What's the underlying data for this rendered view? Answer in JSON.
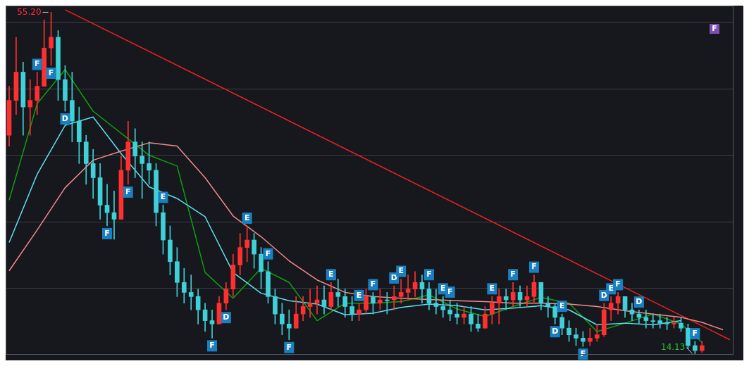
{
  "chart_data": {
    "type": "candlestick",
    "ylim": [
      14,
      56
    ],
    "yticks": [
      {
        "value": 22,
        "label": null
      },
      {
        "value": 30,
        "label": null
      },
      {
        "value": 38,
        "label": null
      },
      {
        "value": 46,
        "label": null
      },
      {
        "value": 54,
        "label": null
      }
    ],
    "grid": "y",
    "legend": false,
    "categories": [
      null,
      null,
      null,
      null,
      null,
      null,
      null,
      null,
      null,
      null,
      null,
      null,
      null,
      null,
      null,
      null,
      null,
      null,
      null,
      null,
      null,
      null,
      null,
      null,
      null,
      null,
      null,
      null,
      null,
      null,
      null,
      null,
      null,
      null,
      null,
      null,
      null,
      null,
      null,
      null,
      null,
      null,
      null,
      null,
      null,
      null,
      null,
      null,
      null,
      null,
      null,
      null,
      null,
      null,
      null,
      null,
      null,
      null,
      null,
      null,
      null,
      null,
      null,
      null,
      null,
      null,
      null,
      null,
      null,
      null,
      null,
      null,
      null,
      null,
      null,
      null,
      null,
      null,
      null,
      null,
      null,
      null,
      null,
      null,
      null,
      null,
      null,
      null,
      null,
      null,
      null,
      null,
      null,
      null,
      null,
      null,
      null,
      null,
      null,
      null,
      null,
      null,
      null,
      null
    ],
    "ohlc": [
      [
        40.4,
        46.3,
        39.1,
        44.6
      ],
      [
        44.6,
        52.2,
        42.9,
        48.0
      ],
      [
        48.0,
        49.2,
        40.4,
        43.8
      ],
      [
        43.8,
        47.1,
        40.4,
        44.6
      ],
      [
        44.6,
        48.0,
        42.9,
        46.3
      ],
      [
        46.3,
        54.3,
        46.3,
        50.9
      ],
      [
        50.9,
        55.2,
        48.8,
        52.2
      ],
      [
        52.2,
        53.0,
        44.6,
        47.1
      ],
      [
        47.1,
        48.8,
        43.3,
        44.6
      ],
      [
        44.6,
        48.0,
        39.6,
        42.1
      ],
      [
        42.1,
        43.8,
        37.0,
        39.6
      ],
      [
        39.6,
        40.4,
        34.5,
        37.0
      ],
      [
        37.0,
        38.7,
        32.8,
        35.3
      ],
      [
        35.3,
        37.0,
        30.3,
        32.0
      ],
      [
        32.0,
        34.5,
        29.5,
        31.1
      ],
      [
        31.1,
        33.7,
        27.9,
        30.3
      ],
      [
        30.3,
        37.9,
        30.3,
        36.2
      ],
      [
        36.2,
        42.1,
        34.5,
        39.6
      ],
      [
        39.6,
        41.2,
        35.3,
        37.9
      ],
      [
        37.9,
        39.6,
        32.8,
        37.0
      ],
      [
        37.0,
        39.6,
        34.5,
        36.2
      ],
      [
        36.2,
        37.0,
        29.5,
        31.1
      ],
      [
        31.1,
        32.0,
        26.1,
        27.8
      ],
      [
        27.8,
        29.5,
        23.6,
        25.2
      ],
      [
        25.2,
        26.9,
        21.0,
        22.7
      ],
      [
        22.7,
        24.4,
        20.2,
        21.5
      ],
      [
        21.5,
        23.6,
        19.4,
        21.0
      ],
      [
        21.0,
        21.9,
        17.7,
        19.4
      ],
      [
        19.4,
        20.2,
        16.8,
        18.1
      ],
      [
        18.1,
        19.4,
        16.0,
        17.7
      ],
      [
        17.7,
        21.0,
        17.7,
        20.2
      ],
      [
        20.2,
        22.7,
        19.4,
        21.9
      ],
      [
        21.9,
        26.1,
        21.0,
        24.8
      ],
      [
        24.8,
        28.6,
        23.6,
        26.9
      ],
      [
        26.9,
        29.5,
        25.2,
        27.8
      ],
      [
        27.8,
        28.6,
        24.4,
        26.1
      ],
      [
        26.1,
        26.9,
        21.9,
        24.0
      ],
      [
        24.0,
        25.2,
        20.2,
        21.0
      ],
      [
        21.0,
        21.9,
        17.7,
        18.9
      ],
      [
        18.9,
        20.2,
        16.4,
        17.7
      ],
      [
        17.7,
        19.4,
        15.8,
        17.2
      ],
      [
        17.2,
        21.0,
        17.2,
        18.9
      ],
      [
        18.9,
        21.0,
        18.1,
        19.8
      ],
      [
        19.8,
        21.9,
        18.5,
        20.2
      ],
      [
        20.2,
        22.3,
        18.9,
        20.6
      ],
      [
        20.6,
        22.3,
        18.9,
        19.8
      ],
      [
        19.8,
        22.7,
        19.4,
        21.5
      ],
      [
        21.5,
        23.1,
        19.8,
        21.0
      ],
      [
        21.0,
        21.9,
        18.5,
        19.8
      ],
      [
        19.8,
        21.0,
        18.1,
        18.9
      ],
      [
        18.9,
        20.2,
        18.1,
        19.4
      ],
      [
        19.4,
        21.9,
        18.9,
        21.0
      ],
      [
        21.0,
        21.5,
        18.9,
        20.2
      ],
      [
        20.2,
        21.9,
        19.4,
        20.6
      ],
      [
        20.6,
        21.5,
        18.9,
        20.5
      ],
      [
        20.6,
        22.3,
        19.4,
        21.0
      ],
      [
        21.0,
        23.1,
        20.2,
        21.5
      ],
      [
        21.5,
        23.6,
        20.6,
        21.9
      ],
      [
        21.9,
        24.0,
        21.0,
        22.7
      ],
      [
        22.7,
        23.6,
        20.2,
        21.9
      ],
      [
        21.9,
        22.7,
        19.4,
        20.2
      ],
      [
        20.2,
        21.9,
        18.9,
        19.8
      ],
      [
        19.8,
        21.0,
        18.5,
        19.4
      ],
      [
        19.4,
        20.6,
        18.1,
        18.9
      ],
      [
        18.9,
        20.2,
        17.7,
        18.5
      ],
      [
        18.5,
        19.8,
        17.7,
        18.9
      ],
      [
        18.9,
        19.8,
        16.8,
        17.7
      ],
      [
        17.7,
        18.9,
        16.8,
        17.2
      ],
      [
        17.2,
        19.8,
        17.2,
        18.9
      ],
      [
        18.9,
        21.0,
        17.7,
        20.2
      ],
      [
        20.2,
        21.9,
        17.7,
        21.0
      ],
      [
        21.0,
        21.9,
        19.4,
        20.6
      ],
      [
        20.6,
        22.7,
        19.8,
        21.5
      ],
      [
        21.5,
        22.3,
        19.8,
        20.6
      ],
      [
        20.6,
        22.3,
        19.8,
        21.0
      ],
      [
        21.0,
        23.6,
        20.2,
        22.7
      ],
      [
        22.7,
        22.7,
        19.4,
        20.2
      ],
      [
        20.2,
        21.0,
        18.5,
        19.8
      ],
      [
        19.8,
        20.2,
        17.7,
        18.5
      ],
      [
        18.5,
        18.9,
        16.4,
        17.2
      ],
      [
        17.2,
        18.1,
        15.6,
        16.4
      ],
      [
        16.4,
        17.2,
        15.1,
        16.0
      ],
      [
        16.0,
        16.8,
        15.0,
        15.6
      ],
      [
        15.6,
        17.2,
        15.1,
        16.0
      ],
      [
        16.0,
        17.7,
        15.6,
        16.4
      ],
      [
        16.4,
        20.2,
        16.2,
        19.4
      ],
      [
        19.4,
        21.0,
        18.1,
        20.2
      ],
      [
        20.2,
        21.5,
        18.9,
        21.0
      ],
      [
        21.0,
        21.0,
        18.5,
        19.4
      ],
      [
        19.4,
        20.2,
        18.1,
        18.9
      ],
      [
        18.9,
        19.4,
        17.7,
        18.5
      ],
      [
        18.5,
        19.4,
        17.2,
        18.1
      ],
      [
        18.1,
        18.9,
        17.2,
        18.0
      ],
      [
        18.1,
        18.9,
        17.2,
        17.8
      ],
      [
        17.8,
        18.5,
        17.0,
        17.7
      ],
      [
        17.7,
        18.5,
        17.2,
        17.8
      ],
      [
        17.8,
        18.5,
        16.8,
        17.2
      ],
      [
        17.2,
        17.7,
        14.7,
        15.1
      ],
      [
        15.1,
        15.6,
        14.13,
        14.5
      ],
      [
        14.5,
        15.6,
        14.3,
        15.1
      ],
      null,
      null,
      null,
      null
    ],
    "colors": [
      "#ff3030",
      "#ff3030",
      "#40d0d8",
      "#ff3030",
      "#ff3030",
      "#ff3030",
      "#ff3030",
      "#40d0d8",
      "#40d0d8",
      "#40d0d8",
      "#40d0d8",
      "#40d0d8",
      "#40d0d8",
      "#40d0d8",
      "#40d0d8",
      "#40d0d8",
      "#ff3030",
      "#ff3030",
      "#40d0d8",
      "#40d0d8",
      "#40d0d8",
      "#40d0d8",
      "#40d0d8",
      "#40d0d8",
      "#40d0d8",
      "#40d0d8",
      "#40d0d8",
      "#40d0d8",
      "#40d0d8",
      "#40d0d8",
      "#ff3030",
      "#ff3030",
      "#ff3030",
      "#ff3030",
      "#ff3030",
      "#40d0d8",
      "#40d0d8",
      "#40d0d8",
      "#40d0d8",
      "#40d0d8",
      "#40d0d8",
      "#ff3030",
      "#ff3030",
      "#ff3030",
      "#ff3030",
      "#40d0d8",
      "#ff3030",
      "#40d0d8",
      "#40d0d8",
      "#40d0d8",
      "#ff3030",
      "#ff3030",
      "#40d0d8",
      "#ff3030",
      "#40d0d8",
      "#ff3030",
      "#ff3030",
      "#ff3030",
      "#ff3030",
      "#40d0d8",
      "#40d0d8",
      "#40d0d8",
      "#40d0d8",
      "#40d0d8",
      "#40d0d8",
      "#ff3030",
      "#40d0d8",
      "#40d0d8",
      "#ff3030",
      "#ff3030",
      "#ff3030",
      "#40d0d8",
      "#ff3030",
      "#40d0d8",
      "#ff3030",
      "#ff3030",
      "#40d0d8",
      "#40d0d8",
      "#40d0d8",
      "#40d0d8",
      "#40d0d8",
      "#40d0d8",
      "#40d0d8",
      "#ff3030",
      "#ff3030",
      "#ff3030",
      "#ff3030",
      "#ff3030",
      "#40d0d8",
      "#40d0d8",
      "#40d0d8",
      "#40d0d8",
      "#40d0d8",
      "#40d0d8",
      "#40d0d8",
      "#ff3030",
      "#40d0d8",
      "#40d0d8",
      "#40d0d8",
      "#ff3030",
      null,
      null,
      null,
      null
    ],
    "series": [
      {
        "type": "line",
        "color": "#f08c8c",
        "values": [
          24.1,
          null,
          null,
          null,
          29.0,
          null,
          null,
          null,
          34.1,
          null,
          null,
          null,
          37.4,
          null,
          null,
          null,
          38.5,
          null,
          null,
          null,
          39.5,
          null,
          null,
          null,
          39.1,
          null,
          null,
          null,
          35.3,
          null,
          null,
          null,
          30.7,
          null,
          null,
          null,
          28.2,
          null,
          null,
          null,
          25.3,
          null,
          null,
          null,
          23.0,
          null,
          null,
          null,
          21.5,
          null,
          null,
          null,
          21.0,
          null,
          null,
          null,
          20.8,
          null,
          null,
          null,
          null,
          null,
          null,
          null,
          20.5,
          null,
          null,
          null,
          20.4,
          null,
          null,
          null,
          20.2,
          null,
          null,
          null,
          20.2,
          null,
          null,
          null,
          20.1,
          null,
          null,
          null,
          19.8,
          null,
          null,
          null,
          19.3,
          null,
          null,
          null,
          18.9,
          null,
          null,
          null,
          18.5,
          null,
          null,
          17.9,
          null,
          null,
          17.0,
          null
        ]
      },
      {
        "type": "line",
        "color": "#5ee0f0",
        "values": [
          27.5,
          null,
          null,
          null,
          35.7,
          null,
          null,
          null,
          41.6,
          null,
          null,
          null,
          42.6,
          null,
          null,
          null,
          38.2,
          null,
          null,
          null,
          34.2,
          null,
          null,
          null,
          32.8,
          null,
          null,
          null,
          30.6,
          null,
          null,
          null,
          23.9,
          null,
          null,
          null,
          21.4,
          null,
          null,
          null,
          20.5,
          null,
          null,
          null,
          20.1,
          null,
          null,
          null,
          18.8,
          null,
          null,
          null,
          19.0,
          null,
          null,
          null,
          19.7,
          null,
          null,
          null,
          20.1,
          null,
          null,
          null,
          19.9,
          null,
          null,
          null,
          19.4,
          null,
          null,
          null,
          19.6,
          null,
          null,
          null,
          19.9,
          null,
          null,
          null,
          19.4,
          null,
          null,
          null,
          17.6,
          null,
          null,
          null,
          17.8,
          null,
          null,
          null,
          17.6,
          null,
          null,
          null,
          18.1,
          null,
          null,
          null,
          null,
          null,
          null,
          null
        ]
      },
      {
        "type": "line",
        "color": "#10a010",
        "values": [
          32.6,
          null,
          null,
          null,
          44.2,
          null,
          null,
          null,
          48.3,
          null,
          null,
          null,
          43.3,
          null,
          null,
          null,
          null,
          null,
          null,
          null,
          38.0,
          null,
          null,
          null,
          36.7,
          null,
          null,
          null,
          23.9,
          null,
          null,
          null,
          20.8,
          null,
          null,
          null,
          24.4,
          null,
          null,
          null,
          22.7,
          null,
          null,
          null,
          18.1,
          null,
          null,
          null,
          20.2,
          null,
          null,
          null,
          20.2,
          null,
          null,
          null,
          20.4,
          null,
          null,
          null,
          21.2,
          null,
          null,
          null,
          19.5,
          null,
          null,
          null,
          18.6,
          null,
          null,
          null,
          19.8,
          null,
          null,
          null,
          20.9,
          null,
          null,
          null,
          20.2,
          null,
          null,
          null,
          16.8,
          null,
          null,
          null,
          17.8,
          null,
          null,
          null,
          18.9,
          null,
          null,
          null,
          17.7,
          null,
          null,
          15.5,
          null,
          null,
          null,
          null
        ]
      },
      {
        "type": "line",
        "color": "#f02020",
        "values": [
          null,
          null,
          null,
          null,
          null,
          null,
          null,
          null,
          55.5,
          null,
          null,
          null,
          null,
          null,
          null,
          null,
          null,
          null,
          null,
          null,
          null,
          null,
          null,
          null,
          null,
          null,
          null,
          null,
          null,
          null,
          null,
          null,
          null,
          null,
          null,
          null,
          null,
          null,
          null,
          null,
          null,
          null,
          null,
          null,
          null,
          null,
          null,
          null,
          null,
          null,
          null,
          null,
          null,
          null,
          null,
          null,
          null,
          null,
          null,
          null,
          null,
          null,
          null,
          null,
          null,
          null,
          null,
          null,
          null,
          null,
          null,
          null,
          null,
          null,
          null,
          null,
          null,
          null,
          null,
          null,
          null,
          null,
          null,
          null,
          null,
          null,
          null,
          null,
          null,
          null,
          null,
          null,
          null,
          null,
          null,
          null,
          null,
          null,
          null,
          null,
          null,
          null,
          null,
          15.8
        ]
      }
    ],
    "annotations": [
      "55.20",
      {
        "text": "F",
        "y": 48.0
      },
      {
        "text": "F",
        "y": 48.8
      },
      {
        "text": "D",
        "y": 43.3
      },
      {
        "text": "F",
        "y": 29.5
      },
      {
        "text": "F",
        "y": 34.5
      },
      {
        "text": "E",
        "y": 32.0
      },
      {
        "text": "F",
        "y": 16.0
      },
      {
        "text": "D",
        "y": 19.4
      },
      {
        "text": "E",
        "y": 29.5
      },
      {
        "text": "F",
        "y": 25.2
      },
      {
        "text": "F",
        "y": 15.8
      },
      {
        "text": "E",
        "y": 22.7
      },
      {
        "text": "E",
        "y": 20.2
      },
      {
        "text": "F",
        "y": 21.5
      },
      {
        "text": "D",
        "y": 22.3
      },
      {
        "text": "E",
        "y": 23.1
      },
      {
        "text": "F",
        "y": 22.7
      },
      {
        "text": "E",
        "y": 21.0
      },
      {
        "text": "F",
        "y": 20.6
      },
      {
        "text": "E",
        "y": 21.0
      },
      {
        "text": "F",
        "y": 22.7
      },
      {
        "text": "F",
        "y": 23.6
      },
      {
        "text": "D",
        "y": 17.7
      },
      {
        "text": "E",
        "y": 18.9
      },
      {
        "text": "F",
        "y": 15.0
      },
      {
        "text": "D",
        "y": 20.2
      },
      {
        "text": "E",
        "y": 21.0
      },
      {
        "text": "F",
        "y": 21.5
      },
      {
        "text": "D",
        "y": 19.4
      },
      {
        "text": "F",
        "y": 15.6
      },
      "14.13",
      "F"
    ]
  }
}
